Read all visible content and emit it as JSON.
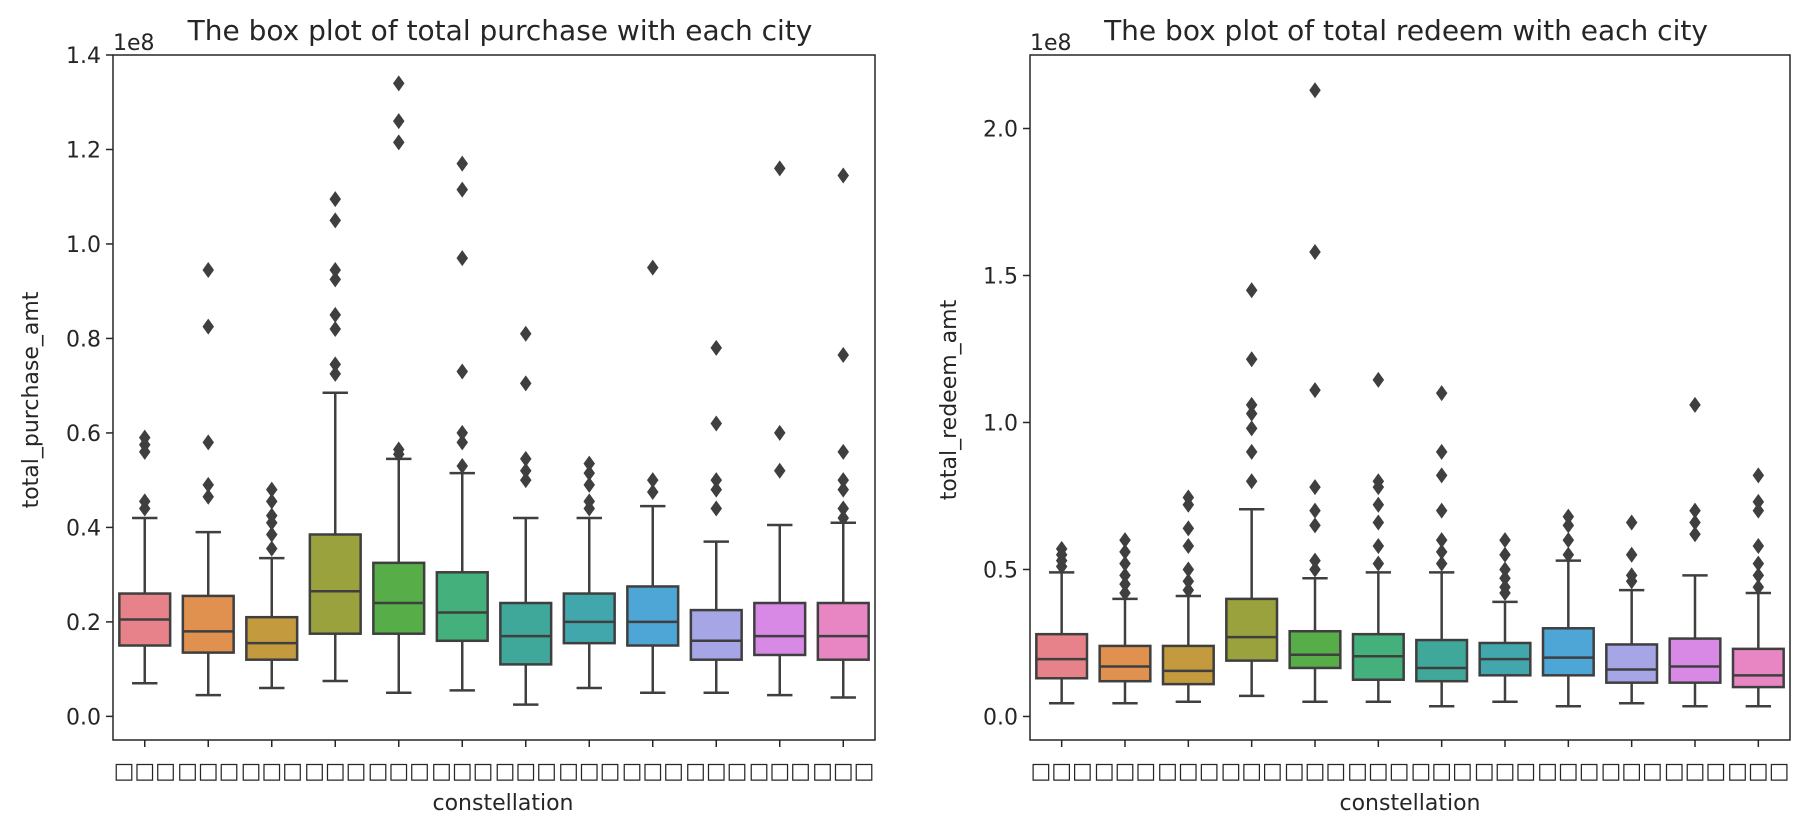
{
  "chart_data": [
    {
      "type": "box",
      "title": "The box plot of total purchase with each city",
      "xlabel": "constellation",
      "ylabel": "total_purchase_amt",
      "offset_text": "1e8",
      "ylim": [
        -0.05,
        1.4
      ],
      "yticks": [
        0.0,
        0.2,
        0.4,
        0.6,
        0.8,
        1.0,
        1.2,
        1.4
      ],
      "ytick_labels": [
        "0.0",
        "0.2",
        "0.4",
        "0.6",
        "0.8",
        "1.0",
        "1.2",
        "1.4"
      ],
      "categories": [
        "□□□",
        "□□□",
        "□□□",
        "□□□",
        "□□□",
        "□□□",
        "□□□",
        "□□□",
        "□□□",
        "□□□",
        "□□□",
        "□□□"
      ],
      "colors": [
        "#e8828a",
        "#e0904f",
        "#c49a3e",
        "#9aa23e",
        "#57ad48",
        "#44b07c",
        "#3fa89b",
        "#42a7ad",
        "#4ea6d6",
        "#a6a5e6",
        "#d889e6",
        "#e886c3"
      ],
      "boxes": [
        {
          "q1": 0.15,
          "median": 0.205,
          "q3": 0.26,
          "whisker_low": 0.07,
          "whisker_high": 0.42,
          "outliers": [
            0.44,
            0.455,
            0.56,
            0.575,
            0.59
          ]
        },
        {
          "q1": 0.135,
          "median": 0.18,
          "q3": 0.255,
          "whisker_low": 0.045,
          "whisker_high": 0.39,
          "outliers": [
            0.465,
            0.49,
            0.58,
            0.825,
            0.945
          ]
        },
        {
          "q1": 0.12,
          "median": 0.155,
          "q3": 0.21,
          "whisker_low": 0.06,
          "whisker_high": 0.335,
          "outliers": [
            0.355,
            0.385,
            0.41,
            0.425,
            0.455,
            0.48
          ]
        },
        {
          "q1": 0.175,
          "median": 0.265,
          "q3": 0.385,
          "whisker_low": 0.075,
          "whisker_high": 0.685,
          "outliers": [
            0.725,
            0.745,
            0.82,
            0.85,
            0.925,
            0.945,
            1.05,
            1.095
          ]
        },
        {
          "q1": 0.175,
          "median": 0.24,
          "q3": 0.325,
          "whisker_low": 0.05,
          "whisker_high": 0.545,
          "outliers": [
            0.555,
            0.565,
            1.215,
            1.26,
            1.34
          ]
        },
        {
          "q1": 0.16,
          "median": 0.22,
          "q3": 0.305,
          "whisker_low": 0.055,
          "whisker_high": 0.515,
          "outliers": [
            0.53,
            0.58,
            0.6,
            0.73,
            0.97,
            1.115,
            1.17
          ]
        },
        {
          "q1": 0.11,
          "median": 0.17,
          "q3": 0.24,
          "whisker_low": 0.025,
          "whisker_high": 0.42,
          "outliers": [
            0.5,
            0.52,
            0.545,
            0.705,
            0.81
          ]
        },
        {
          "q1": 0.155,
          "median": 0.2,
          "q3": 0.26,
          "whisker_low": 0.06,
          "whisker_high": 0.42,
          "outliers": [
            0.44,
            0.455,
            0.49,
            0.515,
            0.535
          ]
        },
        {
          "q1": 0.15,
          "median": 0.2,
          "q3": 0.275,
          "whisker_low": 0.05,
          "whisker_high": 0.445,
          "outliers": [
            0.475,
            0.5,
            0.95
          ]
        },
        {
          "q1": 0.12,
          "median": 0.16,
          "q3": 0.225,
          "whisker_low": 0.05,
          "whisker_high": 0.37,
          "outliers": [
            0.44,
            0.48,
            0.5,
            0.62,
            0.78
          ]
        },
        {
          "q1": 0.13,
          "median": 0.17,
          "q3": 0.24,
          "whisker_low": 0.045,
          "whisker_high": 0.405,
          "outliers": [
            0.52,
            0.6,
            1.16
          ]
        },
        {
          "q1": 0.12,
          "median": 0.17,
          "q3": 0.24,
          "whisker_low": 0.04,
          "whisker_high": 0.41,
          "outliers": [
            0.42,
            0.44,
            0.48,
            0.5,
            0.56,
            0.765,
            1.145
          ]
        }
      ]
    },
    {
      "type": "box",
      "title": "The box plot of total redeem with each city",
      "xlabel": "constellation",
      "ylabel": "total_redeem_amt",
      "offset_text": "1e8",
      "ylim": [
        -0.08,
        2.25
      ],
      "yticks": [
        0.0,
        0.5,
        1.0,
        1.5,
        2.0
      ],
      "ytick_labels": [
        "0.0",
        "0.5",
        "1.0",
        "1.5",
        "2.0"
      ],
      "categories": [
        "□□□",
        "□□□",
        "□□□",
        "□□□",
        "□□□",
        "□□□",
        "□□□",
        "□□□",
        "□□□",
        "□□□",
        "□□□",
        "□□□"
      ],
      "colors": [
        "#e8828a",
        "#e0904f",
        "#c49a3e",
        "#9aa23e",
        "#57ad48",
        "#44b07c",
        "#3fa89b",
        "#42a7ad",
        "#4ea6d6",
        "#a6a5e6",
        "#d889e6",
        "#e886c3"
      ],
      "boxes": [
        {
          "q1": 0.13,
          "median": 0.195,
          "q3": 0.28,
          "whisker_low": 0.045,
          "whisker_high": 0.49,
          "outliers": [
            0.51,
            0.53,
            0.55,
            0.57
          ]
        },
        {
          "q1": 0.12,
          "median": 0.17,
          "q3": 0.24,
          "whisker_low": 0.045,
          "whisker_high": 0.4,
          "outliers": [
            0.42,
            0.45,
            0.48,
            0.52,
            0.56,
            0.6
          ]
        },
        {
          "q1": 0.11,
          "median": 0.155,
          "q3": 0.24,
          "whisker_low": 0.05,
          "whisker_high": 0.41,
          "outliers": [
            0.43,
            0.46,
            0.5,
            0.58,
            0.64,
            0.72,
            0.745
          ]
        },
        {
          "q1": 0.19,
          "median": 0.27,
          "q3": 0.4,
          "whisker_low": 0.07,
          "whisker_high": 0.705,
          "outliers": [
            0.8,
            0.9,
            0.98,
            1.03,
            1.06,
            1.215,
            1.45
          ]
        },
        {
          "q1": 0.165,
          "median": 0.21,
          "q3": 0.29,
          "whisker_low": 0.05,
          "whisker_high": 0.47,
          "outliers": [
            0.5,
            0.53,
            0.65,
            0.7,
            0.78,
            1.11,
            1.58,
            2.13
          ]
        },
        {
          "q1": 0.125,
          "median": 0.205,
          "q3": 0.28,
          "whisker_low": 0.05,
          "whisker_high": 0.49,
          "outliers": [
            0.52,
            0.58,
            0.66,
            0.72,
            0.78,
            0.8,
            1.145
          ]
        },
        {
          "q1": 0.12,
          "median": 0.165,
          "q3": 0.26,
          "whisker_low": 0.035,
          "whisker_high": 0.49,
          "outliers": [
            0.52,
            0.56,
            0.6,
            0.7,
            0.82,
            0.9,
            1.1
          ]
        },
        {
          "q1": 0.14,
          "median": 0.195,
          "q3": 0.25,
          "whisker_low": 0.05,
          "whisker_high": 0.39,
          "outliers": [
            0.42,
            0.44,
            0.47,
            0.5,
            0.55,
            0.6
          ]
        },
        {
          "q1": 0.14,
          "median": 0.2,
          "q3": 0.3,
          "whisker_low": 0.035,
          "whisker_high": 0.53,
          "outliers": [
            0.55,
            0.6,
            0.65,
            0.68
          ]
        },
        {
          "q1": 0.115,
          "median": 0.16,
          "q3": 0.245,
          "whisker_low": 0.045,
          "whisker_high": 0.43,
          "outliers": [
            0.46,
            0.48,
            0.55,
            0.66
          ]
        },
        {
          "q1": 0.115,
          "median": 0.17,
          "q3": 0.265,
          "whisker_low": 0.035,
          "whisker_high": 0.48,
          "outliers": [
            0.62,
            0.66,
            0.7,
            1.06
          ]
        },
        {
          "q1": 0.1,
          "median": 0.14,
          "q3": 0.23,
          "whisker_low": 0.035,
          "whisker_high": 0.42,
          "outliers": [
            0.44,
            0.48,
            0.52,
            0.58,
            0.7,
            0.73,
            0.82
          ]
        }
      ]
    }
  ]
}
